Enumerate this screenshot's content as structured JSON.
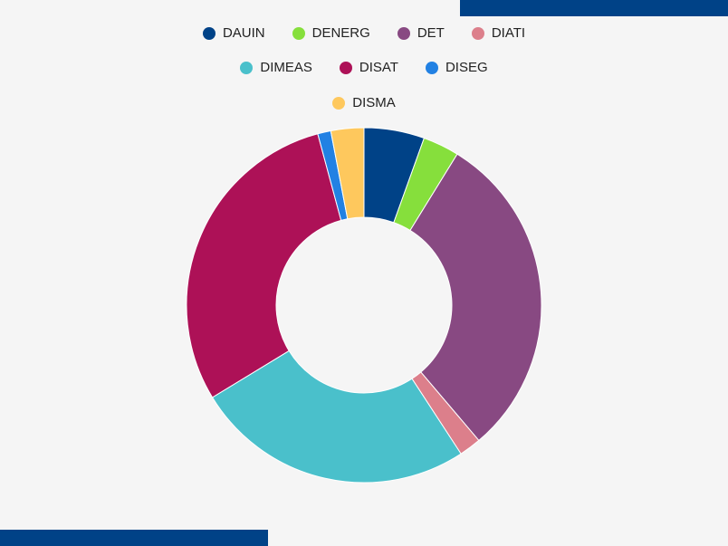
{
  "chart_data": {
    "type": "pie",
    "donut": true,
    "title": "",
    "legend_position": "top",
    "categories": [
      "DAUIN",
      "DENERG",
      "DET",
      "DIATI",
      "DIMEAS",
      "DISAT",
      "DISEG",
      "DISMA"
    ],
    "values": [
      5.5,
      3.3,
      30.0,
      2.0,
      25.5,
      29.5,
      1.2,
      3.0
    ],
    "colors": [
      "#004287",
      "#86df3c",
      "#884982",
      "#dc7f8b",
      "#4ac0cb",
      "#ad1157",
      "#2281e3",
      "#fec85d"
    ]
  }
}
